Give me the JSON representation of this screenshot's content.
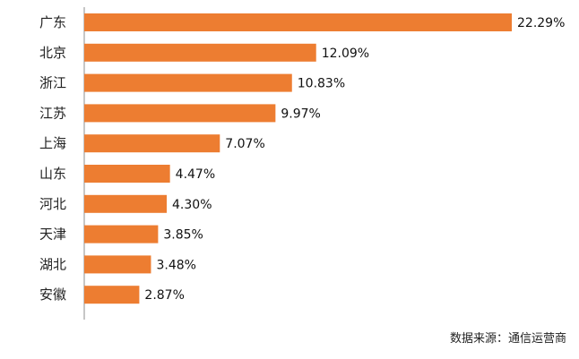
{
  "chart_data": {
    "type": "bar",
    "orientation": "horizontal",
    "categories": [
      "广东",
      "北京",
      "浙江",
      "江苏",
      "上海",
      "山东",
      "河北",
      "天津",
      "湖北",
      "安徽"
    ],
    "values": [
      22.29,
      12.09,
      10.83,
      9.97,
      7.07,
      4.47,
      4.3,
      3.85,
      3.48,
      2.87
    ],
    "value_labels": [
      "22.29%",
      "12.09%",
      "10.83%",
      "9.97%",
      "7.07%",
      "4.47%",
      "4.30%",
      "3.85%",
      "3.48%",
      "2.87%"
    ],
    "unit": "%",
    "title": "",
    "xlabel": "",
    "ylabel": "",
    "xlim": [
      0,
      25
    ],
    "grid": false,
    "legend": "none",
    "bar_color": "#ED7D31"
  },
  "source_note": "数据来源：通信运营商"
}
